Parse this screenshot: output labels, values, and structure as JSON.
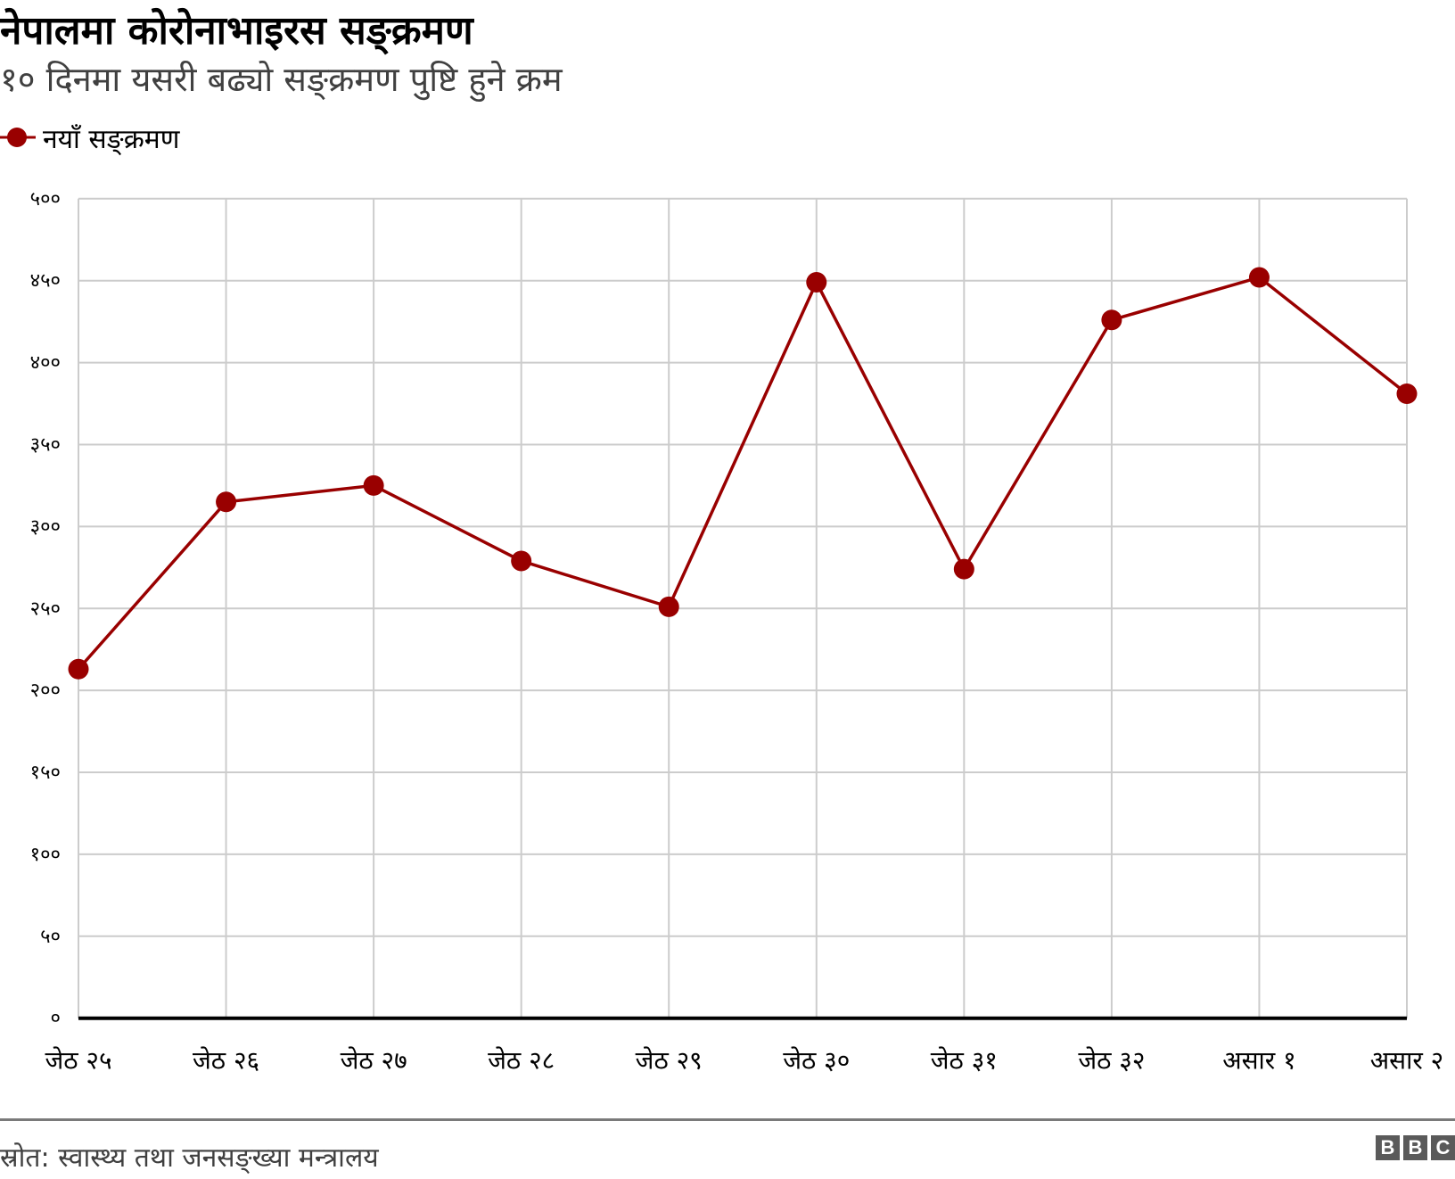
{
  "header": {
    "title": "नेपालमा कोरोनाभाइरस सङ्क्रमण",
    "subtitle": "१० दिनमा यसरी बढ्यो सङ्क्रमण पुष्टि हुने क्रम"
  },
  "legend": {
    "items": [
      {
        "label": "नयाँ सङ्क्रमण",
        "color": "#990000"
      }
    ]
  },
  "footer": {
    "source": "स्रोत: स्वास्थ्य तथा जनसङ्ख्या मन्त्रालय",
    "logo": [
      "B",
      "B",
      "C"
    ]
  },
  "chart_data": {
    "type": "line",
    "title": "नेपालमा कोरोनाभाइरस सङ्क्रमण",
    "subtitle": "१० दिनमा यसरी बढ्यो सङ्क्रमण पुष्टि हुने क्रम",
    "xlabel": "",
    "ylabel": "",
    "categories": [
      "जेठ २५",
      "जेठ २६",
      "जेठ २७",
      "जेठ २८",
      "जेठ २९",
      "जेठ ३०",
      "जेठ ३१",
      "जेठ ३२",
      "असार १",
      "असार २"
    ],
    "series": [
      {
        "name": "नयाँ सङ्क्रमण",
        "color": "#990000",
        "values": [
          213,
          315,
          325,
          279,
          251,
          449,
          274,
          426,
          452,
          381
        ]
      }
    ],
    "ylim": [
      0,
      500
    ],
    "yticks": [
      0,
      50,
      100,
      150,
      200,
      250,
      300,
      350,
      400,
      450,
      500
    ],
    "ytick_labels": [
      "०",
      "५०",
      "१००",
      "१५०",
      "२००",
      "२५०",
      "३००",
      "३५०",
      "४००",
      "४५०",
      "५००"
    ],
    "grid": true,
    "legend_position": "top-left",
    "line_color": "#990000",
    "grid_color": "#cccccc"
  }
}
